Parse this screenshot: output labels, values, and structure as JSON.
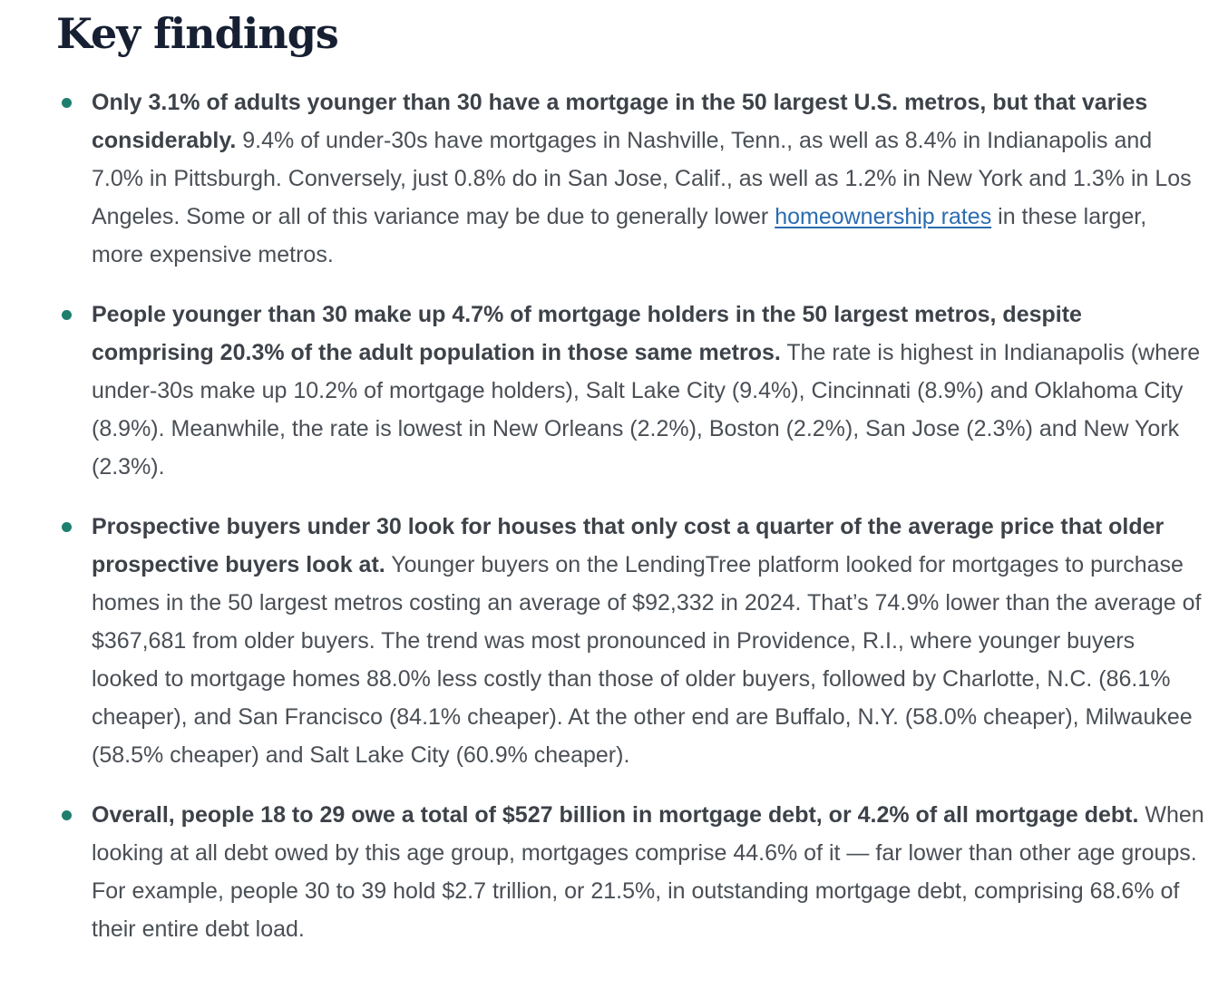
{
  "heading": "Key findings",
  "findings": [
    {
      "lead": "Only 3.1% of adults younger than 30 have a mortgage in the 50 largest U.S. metros, but that varies considerably.",
      "body_before_link": " 9.4% of under-30s have mortgages in Nashville, Tenn., as well as 8.4% in Indianapolis and 7.0% in Pittsburgh. Conversely, just 0.8% do in San Jose, Calif., as well as 1.2% in New York and 1.3% in Los Angeles. Some or all of this variance may be due to generally lower ",
      "link_text": "homeownership rates",
      "body_after_link": " in these larger, more expensive metros."
    },
    {
      "lead": "People younger than 30 make up 4.7% of mortgage holders in the 50 largest metros, despite comprising 20.3% of the adult population in those same metros.",
      "body": " The rate is highest in Indianapolis (where under-30s make up 10.2% of mortgage holders), Salt Lake City (9.4%), Cincinnati (8.9%) and Oklahoma City (8.9%). Meanwhile, the rate is lowest in New Orleans (2.2%), Boston (2.2%), San Jose (2.3%) and New York (2.3%)."
    },
    {
      "lead": "Prospective buyers under 30 look for houses that only cost a quarter of the average price that older prospective buyers look at.",
      "body": " Younger buyers on the LendingTree platform looked for mortgages to purchase homes in the 50 largest metros costing an average of $92,332 in 2024. That’s 74.9% lower than the average of $367,681 from older buyers. The trend was most pronounced in Providence, R.I., where younger buyers looked to mortgage homes 88.0% less costly than those of older buyers, followed by Charlotte, N.C. (86.1% cheaper), and San Francisco (84.1% cheaper). At the other end are Buffalo, N.Y. (58.0% cheaper), Milwaukee (58.5% cheaper) and Salt Lake City (60.9% cheaper)."
    },
    {
      "lead": "Overall, people 18 to 29 owe a total of $527 billion in mortgage debt, or 4.2% of all mortgage debt.",
      "body": " When looking at all debt owed by this age group, mortgages comprise 44.6% of it — far lower than other age groups. For example, people 30 to 39 hold $2.7 trillion, or 21.5%, in outstanding mortgage debt, comprising 68.6% of their entire debt load."
    }
  ],
  "colors": {
    "heading": "#172033",
    "body_text": "#4a4f55",
    "bullet": "#1e7f6f",
    "link": "#2b6cb0"
  }
}
